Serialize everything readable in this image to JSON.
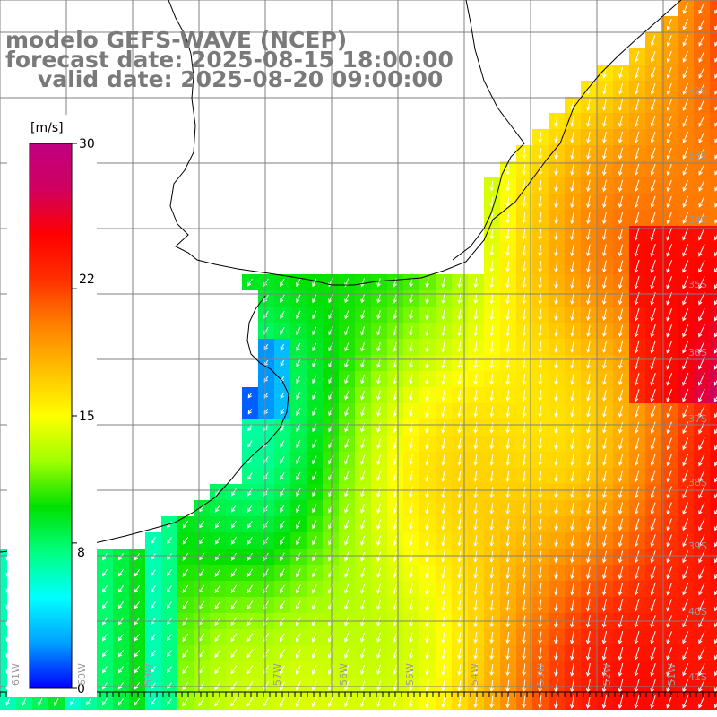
{
  "title": {
    "line1": "modelo GEFS-WAVE (NCEP)",
    "line2": "forecast date: 2025-08-15 18:00:00",
    "line3": "valid date: 2025-08-20 09:00:00"
  },
  "colorbar": {
    "unit": "[m/s]",
    "ticks": [
      "30",
      "22",
      "15",
      "8",
      "0"
    ],
    "tick_values": [
      30,
      22,
      15,
      8,
      0
    ],
    "min": 0,
    "max": 30,
    "colors": [
      "#0000ff",
      "#00a0ff",
      "#00ffff",
      "#00ff80",
      "#00e000",
      "#a0ff00",
      "#ffff00",
      "#ffc000",
      "#ff8000",
      "#ff3000",
      "#ff0000",
      "#d00060",
      "#c00080"
    ]
  },
  "map": {
    "lat_labels": [
      "32S",
      "33S",
      "34S",
      "35S",
      "36S",
      "37S",
      "38S",
      "39S",
      "40S",
      "41S"
    ],
    "lon_labels": [
      "61W",
      "60W",
      "59W",
      "57W",
      "56W",
      "55W",
      "54W",
      "53W",
      "52W",
      "51W"
    ],
    "land_color": "#ffffff",
    "grid_color": "#808080",
    "coast_color": "#000000",
    "arrow_color": "#ffffff"
  }
}
